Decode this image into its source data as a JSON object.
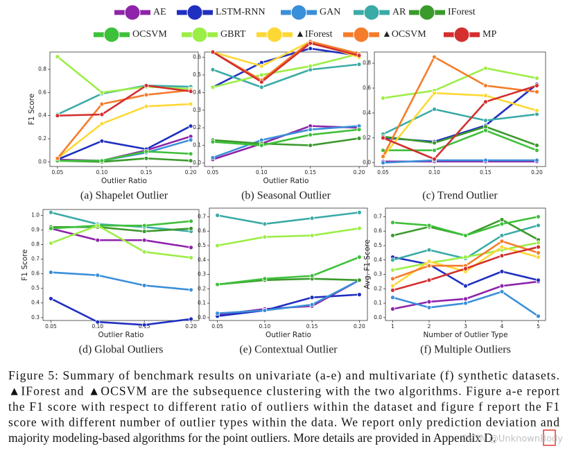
{
  "legend": [
    {
      "name": "AE",
      "color": "#8e24aa"
    },
    {
      "name": "LSTM-RNN",
      "color": "#1f2fc0"
    },
    {
      "name": "GAN",
      "color": "#3a8fd9"
    },
    {
      "name": "AR",
      "color": "#3aaba6"
    },
    {
      "name": "IForest",
      "color": "#3b9a2c"
    },
    {
      "name": "OCSVM",
      "color": "#3fc03a"
    },
    {
      "name": "GBRT",
      "color": "#9cee46"
    },
    {
      "name": "▲IForest",
      "color": "#fdd835"
    },
    {
      "name": "▲OCSVM",
      "color": "#f57c2a"
    },
    {
      "name": "MP",
      "color": "#d32f2f"
    }
  ],
  "chart_data": [
    {
      "type": "line",
      "title": "(a) Shapelet Outlier",
      "xlabel": "Outlier Ratio",
      "ylabel": "F1 Score",
      "x": [
        0.05,
        0.1,
        0.15,
        0.2
      ],
      "xlim": [
        0.0415,
        0.2085
      ],
      "xticks": [
        0.05,
        {
          "value": 0.1,
          "label": "0.10"
        },
        0.15,
        {
          "value": 0.2,
          "label": "0.20"
        }
      ],
      "ylim": [
        -0.04,
        0.95
      ],
      "yticks": [
        {
          "value": 0,
          "label": "0.0"
        },
        0.2,
        0.4,
        0.6,
        0.8
      ],
      "series": [
        {
          "values": [
            0.02,
            0.01,
            0.1,
            0.22
          ]
        },
        {
          "values": [
            0.02,
            0.18,
            0.11,
            0.31
          ]
        },
        {
          "values": [
            0.01,
            0.01,
            0.08,
            0.19
          ]
        },
        {
          "values": [
            0.41,
            0.59,
            0.66,
            0.65
          ]
        },
        {
          "values": [
            0.01,
            0.0,
            0.03,
            0.01
          ]
        },
        {
          "values": [
            0.01,
            0.01,
            0.09,
            0.07
          ]
        },
        {
          "values": [
            0.91,
            0.6,
            0.65,
            0.63
          ]
        },
        {
          "values": [
            0.03,
            0.33,
            0.48,
            0.5
          ]
        },
        {
          "values": [
            0.03,
            0.5,
            0.58,
            0.62
          ]
        },
        {
          "values": [
            0.4,
            0.41,
            0.66,
            0.61
          ]
        }
      ]
    },
    {
      "type": "line",
      "title": "(b) Seasonal Outlier",
      "xlabel": "Outlier Ratio",
      "x": [
        0.05,
        0.1,
        0.15,
        0.2
      ],
      "xlim": [
        0.0415,
        0.2085
      ],
      "xticks": [
        0.05,
        {
          "value": 0.1,
          "label": "0.10"
        },
        0.15,
        {
          "value": 0.2,
          "label": "0.20"
        }
      ],
      "ylim": [
        -0.02,
        0.63
      ],
      "yticks": [
        {
          "value": 0,
          "label": "0.0"
        },
        0.1,
        0.2,
        0.3,
        0.4,
        0.5,
        0.6
      ],
      "series": [
        {
          "values": [
            0.02,
            0.11,
            0.21,
            0.2
          ]
        },
        {
          "values": [
            0.43,
            0.57,
            0.65,
            0.61
          ]
        },
        {
          "values": [
            0.03,
            0.13,
            0.19,
            0.21
          ]
        },
        {
          "values": [
            0.53,
            0.43,
            0.53,
            0.56
          ]
        },
        {
          "values": [
            0.13,
            0.11,
            0.1,
            0.14
          ]
        },
        {
          "values": [
            0.12,
            0.1,
            0.16,
            0.19
          ]
        },
        {
          "values": [
            0.43,
            0.5,
            0.55,
            0.62
          ]
        },
        {
          "values": [
            0.63,
            0.55,
            0.69,
            0.6
          ]
        },
        {
          "values": [
            0.63,
            0.47,
            0.69,
            0.62
          ]
        },
        {
          "values": [
            0.63,
            0.46,
            0.68,
            0.61
          ]
        }
      ]
    },
    {
      "type": "line",
      "title": "(c) Trend Outlier",
      "x": [
        0.05,
        0.1,
        0.15,
        0.2
      ],
      "xlim": [
        0.0415,
        0.2085
      ],
      "xticks": [
        0.05,
        {
          "value": 0.1,
          "label": "0.10"
        },
        0.15,
        {
          "value": 0.2,
          "label": "0.20"
        }
      ],
      "ylim": [
        -0.03,
        0.89
      ],
      "yticks": [
        {
          "value": 0,
          "label": "0.0"
        },
        0.2,
        0.4,
        0.6,
        0.8
      ],
      "series": [
        {
          "values": [
            0.01,
            0.01,
            0.01,
            0.01
          ]
        },
        {
          "values": [
            0.2,
            0.17,
            0.3,
            0.63
          ]
        },
        {
          "values": [
            0.0,
            0.02,
            0.02,
            0.02
          ]
        },
        {
          "values": [
            0.23,
            0.43,
            0.34,
            0.39
          ]
        },
        {
          "values": [
            0.21,
            0.16,
            0.29,
            0.14
          ]
        },
        {
          "values": [
            0.1,
            0.1,
            0.26,
            0.1
          ]
        },
        {
          "values": [
            0.52,
            0.58,
            0.76,
            0.68
          ]
        },
        {
          "values": [
            0.05,
            0.56,
            0.54,
            0.42
          ]
        },
        {
          "values": [
            0.05,
            0.85,
            0.62,
            0.57
          ]
        },
        {
          "values": [
            0.2,
            0.03,
            0.49,
            0.62
          ]
        }
      ]
    },
    {
      "type": "line",
      "title": "(d) Global Outliers",
      "xlabel": "Outlier Ratio",
      "ylabel": "F1 Score",
      "x": [
        0.05,
        0.1,
        0.15,
        0.2
      ],
      "xlim": [
        0.0415,
        0.2085
      ],
      "xticks": [
        0.05,
        {
          "value": 0.1,
          "label": "0.10"
        },
        0.15,
        {
          "value": 0.2,
          "label": "0.20"
        }
      ],
      "ylim": [
        0.28,
        1.04
      ],
      "yticks": [
        0.3,
        0.4,
        0.5,
        0.6,
        0.7,
        0.8,
        0.9,
        {
          "value": 1,
          "label": "1.0"
        }
      ],
      "series": [
        {
          "values": [
            0.91,
            0.83,
            0.83,
            0.78
          ]
        },
        {
          "values": [
            0.43,
            0.27,
            0.25,
            0.29
          ]
        },
        {
          "values": [
            0.61,
            0.59,
            0.52,
            0.49
          ]
        },
        {
          "values": [
            1.02,
            0.94,
            0.92,
            0.89
          ]
        },
        {
          "values": [
            0.92,
            0.92,
            0.89,
            0.91
          ]
        },
        {
          "values": [
            0.91,
            0.93,
            0.93,
            0.96
          ]
        },
        {
          "values": [
            0.81,
            0.93,
            0.75,
            0.71
          ]
        }
      ]
    },
    {
      "type": "line",
      "title": "(e) Contextual Outlier",
      "xlabel": "Outlier Ratio",
      "x": [
        0.05,
        0.1,
        0.15,
        0.2
      ],
      "xlim": [
        0.0415,
        0.2085
      ],
      "xticks": [
        0.05,
        {
          "value": 0.1,
          "label": "0.10"
        },
        0.15,
        {
          "value": 0.2,
          "label": "0.20"
        }
      ],
      "ylim": [
        -0.02,
        0.76
      ],
      "yticks": [
        {
          "value": 0,
          "label": "0.0"
        },
        0.1,
        0.2,
        0.3,
        0.4,
        0.5,
        0.6,
        0.7
      ],
      "series": [
        {
          "values": [
            0.02,
            0.06,
            0.08,
            0.26
          ]
        },
        {
          "values": [
            0.01,
            0.05,
            0.14,
            0.16
          ]
        },
        {
          "values": [
            0.03,
            0.05,
            0.09,
            0.26
          ]
        },
        {
          "values": [
            0.71,
            0.65,
            0.69,
            0.73
          ]
        },
        {
          "values": [
            0.23,
            0.26,
            0.27,
            0.26
          ]
        },
        {
          "values": [
            0.23,
            0.27,
            0.29,
            0.42
          ]
        },
        {
          "values": [
            0.5,
            0.56,
            0.57,
            0.62
          ]
        }
      ]
    },
    {
      "type": "line",
      "title": "(f) Multiple Outliers",
      "xlabel": "Number of Outlier Type",
      "ylabel": "Avg. F1 Score",
      "x": [
        1,
        2,
        3,
        4,
        5
      ],
      "xlim": [
        0.8,
        5.2
      ],
      "xticks": [
        1,
        2,
        3,
        4,
        5
      ],
      "ylim": [
        -0.02,
        0.76
      ],
      "yticks": [
        {
          "value": 0,
          "label": "0.0"
        },
        0.1,
        0.2,
        0.3,
        0.4,
        0.5,
        0.6,
        0.7
      ],
      "series": [
        {
          "values": [
            0.06,
            0.11,
            0.13,
            0.22,
            0.25
          ]
        },
        {
          "values": [
            0.42,
            0.37,
            0.22,
            0.32,
            0.26
          ]
        },
        {
          "values": [
            0.14,
            0.07,
            0.1,
            0.18,
            0.01
          ]
        },
        {
          "values": [
            0.4,
            0.47,
            0.41,
            0.57,
            0.64
          ]
        },
        {
          "values": [
            0.57,
            0.63,
            0.57,
            0.68,
            0.54
          ]
        },
        {
          "values": [
            0.66,
            0.64,
            0.57,
            0.65,
            0.7
          ]
        },
        {
          "values": [
            0.33,
            0.38,
            0.42,
            0.47,
            0.52
          ]
        },
        {
          "values": [
            0.22,
            0.39,
            0.32,
            0.49,
            0.42
          ]
        },
        {
          "values": [
            0.27,
            0.36,
            0.36,
            0.53,
            0.45
          ]
        },
        {
          "values": [
            0.19,
            0.26,
            0.34,
            0.43,
            0.49
          ]
        }
      ]
    }
  ],
  "caption": [
    "Figure 5: Summary of benchmark results on univariate (a-e) and multivariate (f) synthetic datasets.",
    "▲IForest and ▲OCSVM are the subsequence clustering with the two algorithms. Figure a-e report",
    "the F1 score with respect to different ratio of outliers within the dataset and figure f report the F1",
    "score with different number of outlier types within the data. We report only prediction deviation and",
    "majority modeling-based algorithms for the point outliers. More details are provided in Appendix D."
  ],
  "watermark": "CSDN @UnknownBody"
}
